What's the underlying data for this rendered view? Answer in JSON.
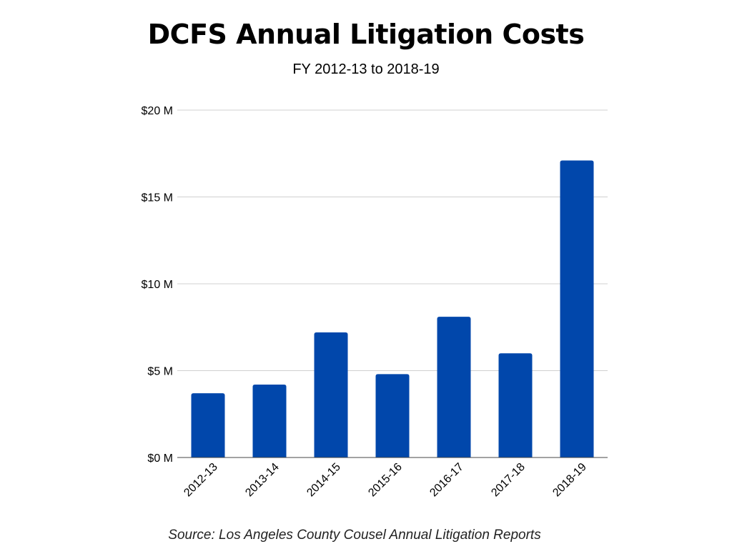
{
  "chart_data": {
    "type": "bar",
    "title": "DCFS Annual Litigation Costs",
    "subtitle": "FY 2012-13 to 2018-19",
    "categories": [
      "2012-13",
      "2013-14",
      "2014-15",
      "2015-16",
      "2016-17",
      "2017-18",
      "2018-19"
    ],
    "values": [
      3.7,
      4.2,
      7.2,
      4.8,
      8.1,
      6.0,
      17.1
    ],
    "unit": "millions of dollars",
    "yticks": [
      "$0 M",
      "$5 M",
      "$10 M",
      "$15 M",
      "$20 M"
    ],
    "ylim": [
      0,
      20
    ],
    "grid": true,
    "legend": "none",
    "bar_color": "#0147AB",
    "grid_color": "#D0D0D0",
    "source": "Source: Los Angeles County Cousel Annual Litigation Reports"
  }
}
